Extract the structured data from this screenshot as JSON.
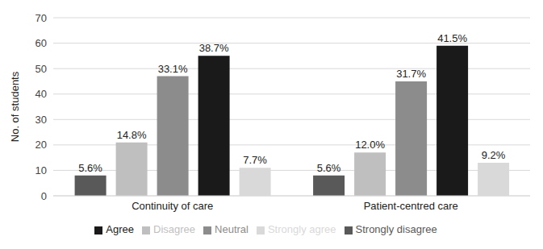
{
  "chart_data": {
    "type": "bar",
    "y_label": "No. of students",
    "categories": [
      "Continuity of care",
      "Patient-centred care"
    ],
    "series": [
      {
        "name": "Strongly disagree",
        "color": "#595959",
        "values": [
          8,
          8
        ],
        "percent_labels": [
          "5.6%",
          "5.6%"
        ]
      },
      {
        "name": "Disagree",
        "color": "#bfbfbf",
        "values": [
          21,
          17
        ],
        "percent_labels": [
          "14.8%",
          "12.0%"
        ]
      },
      {
        "name": "Neutral",
        "color": "#8c8c8c",
        "values": [
          47,
          45
        ],
        "percent_labels": [
          "33.1%",
          "31.7%"
        ]
      },
      {
        "name": "Agree",
        "color": "#1a1a1a",
        "values": [
          55,
          59
        ],
        "percent_labels": [
          "38.7%",
          "41.5%"
        ]
      },
      {
        "name": "Strongly agree",
        "color": "#d9d9d9",
        "values": [
          11,
          13
        ],
        "percent_labels": [
          "7.7%",
          "9.2%"
        ]
      }
    ],
    "ylim": [
      0,
      70
    ],
    "yticks": [
      0,
      10,
      20,
      30,
      40,
      50,
      60,
      70
    ],
    "grid": true,
    "legend": "bottom"
  }
}
